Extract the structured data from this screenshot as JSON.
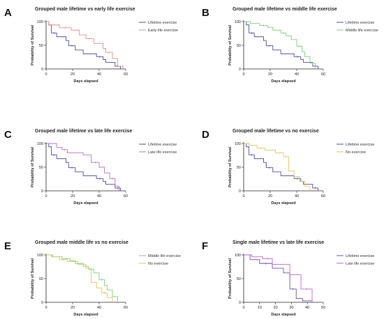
{
  "chart_data": [
    {
      "panel": "A",
      "type": "line",
      "title": "Grouped male lifetime vs early life exercise",
      "xlabel": "Days elapsed",
      "ylabel": "Probability of Survival",
      "xlim": [
        0,
        60
      ],
      "ylim": [
        0,
        100
      ],
      "xticks": [
        0,
        20,
        40,
        60
      ],
      "yticks": [
        0,
        50,
        100
      ],
      "legend_position": "right",
      "series": [
        {
          "name": "Lifetime exercise",
          "color": "#4a4aa6",
          "x": [
            0,
            2,
            4,
            8,
            15,
            17,
            22,
            28,
            38,
            43,
            45,
            52,
            56
          ],
          "y": [
            100,
            93,
            76,
            68,
            60,
            49,
            40,
            32,
            26,
            20,
            14,
            6,
            0
          ]
        },
        {
          "name": "Early life exercise",
          "color": "#e58e80",
          "x": [
            0,
            2,
            10,
            19,
            25,
            30,
            36,
            43,
            45,
            50,
            54,
            58
          ],
          "y": [
            100,
            93,
            87,
            82,
            72,
            64,
            54,
            43,
            35,
            22,
            6,
            0
          ]
        }
      ]
    },
    {
      "panel": "B",
      "type": "line",
      "title": "Grouped male lifetime vs middle life exercise",
      "xlabel": "Days elapsed",
      "ylabel": "Probability of Survival",
      "xlim": [
        0,
        60
      ],
      "ylim": [
        0,
        100
      ],
      "xticks": [
        0,
        20,
        40,
        60
      ],
      "yticks": [
        0,
        50,
        100
      ],
      "legend_position": "right",
      "series": [
        {
          "name": "Lifetime exercise",
          "color": "#4a4aa6",
          "x": [
            0,
            2,
            4,
            8,
            15,
            17,
            22,
            28,
            38,
            43,
            45,
            52,
            56
          ],
          "y": [
            100,
            93,
            76,
            68,
            60,
            49,
            40,
            32,
            26,
            20,
            14,
            6,
            0
          ]
        },
        {
          "name": "Middle life exercise",
          "color": "#7bcf7b",
          "x": [
            0,
            5,
            12,
            18,
            22,
            28,
            32,
            36,
            40,
            44,
            46,
            50,
            54
          ],
          "y": [
            100,
            96,
            92,
            88,
            82,
            76,
            70,
            62,
            48,
            36,
            26,
            12,
            0
          ]
        }
      ]
    },
    {
      "panel": "C",
      "type": "line",
      "title": "Grouped male lifetime vs late life exercise",
      "xlabel": "Days elapsed",
      "ylabel": "Probability of Survival",
      "xlim": [
        0,
        60
      ],
      "ylim": [
        0,
        100
      ],
      "xticks": [
        0,
        20,
        40,
        60
      ],
      "yticks": [
        0,
        50,
        100
      ],
      "legend_position": "right",
      "series": [
        {
          "name": "Lifetime exercise",
          "color": "#4a4aa6",
          "x": [
            0,
            2,
            4,
            8,
            15,
            17,
            22,
            28,
            38,
            43,
            45,
            52,
            56
          ],
          "y": [
            100,
            93,
            76,
            68,
            60,
            49,
            40,
            32,
            26,
            20,
            14,
            6,
            0
          ]
        },
        {
          "name": "Late life exercise",
          "color": "#b86fc9",
          "x": [
            0,
            8,
            12,
            16,
            28,
            34,
            40,
            44,
            48,
            52,
            55
          ],
          "y": [
            100,
            92,
            87,
            80,
            76,
            60,
            50,
            38,
            26,
            10,
            0
          ]
        }
      ]
    },
    {
      "panel": "D",
      "type": "line",
      "title": "Grouped male lifetime vs no exercise",
      "xlabel": "Days elapsed",
      "ylabel": "Probability of Survival",
      "xlim": [
        0,
        60
      ],
      "ylim": [
        0,
        100
      ],
      "xticks": [
        0,
        20,
        40,
        60
      ],
      "yticks": [
        0,
        50,
        100
      ],
      "legend_position": "right",
      "series": [
        {
          "name": "Lifetime exercise",
          "color": "#4a4aa6",
          "x": [
            0,
            2,
            4,
            8,
            15,
            17,
            22,
            28,
            38,
            43,
            45,
            52,
            56
          ],
          "y": [
            100,
            93,
            76,
            68,
            60,
            49,
            40,
            32,
            26,
            20,
            14,
            6,
            0
          ]
        },
        {
          "name": "No exercise",
          "color": "#e0c25a",
          "x": [
            0,
            4,
            10,
            16,
            24,
            30,
            34,
            38,
            42,
            46,
            50
          ],
          "y": [
            100,
            96,
            90,
            86,
            80,
            72,
            42,
            30,
            20,
            10,
            0
          ]
        }
      ]
    },
    {
      "panel": "E",
      "type": "line",
      "title": "Grouped male middle life vs no exercise",
      "xlabel": "Days elapsed",
      "ylabel": "Probability of Survival",
      "xlim": [
        0,
        60
      ],
      "ylim": [
        0,
        100
      ],
      "xticks": [
        0,
        20,
        40,
        60
      ],
      "yticks": [
        0,
        50,
        100
      ],
      "legend_position": "right",
      "series": [
        {
          "name": "Middle life exercise",
          "color": "#7bcf7b",
          "x": [
            0,
            5,
            12,
            18,
            22,
            28,
            32,
            36,
            40,
            44,
            46,
            50,
            54
          ],
          "y": [
            100,
            96,
            92,
            88,
            82,
            76,
            70,
            62,
            48,
            36,
            26,
            12,
            0
          ]
        },
        {
          "name": "No exercise",
          "color": "#e0c25a",
          "x": [
            0,
            4,
            10,
            16,
            24,
            30,
            34,
            38,
            42,
            46,
            50
          ],
          "y": [
            100,
            96,
            90,
            86,
            80,
            72,
            42,
            30,
            20,
            10,
            0
          ]
        }
      ]
    },
    {
      "panel": "F",
      "type": "line",
      "title": "Single male lifetime vs late life exercise",
      "xlabel": "Days elapsed",
      "ylabel": "Probability of Survival",
      "xlim": [
        0,
        50
      ],
      "ylim": [
        0,
        100
      ],
      "xticks": [
        0,
        10,
        20,
        30,
        40,
        50
      ],
      "yticks": [
        0,
        50,
        100
      ],
      "legend_position": "right",
      "series": [
        {
          "name": "Lifetime exercise",
          "color": "#6a4fa8",
          "x": [
            0,
            4,
            10,
            18,
            25,
            29,
            33,
            37,
            43
          ],
          "y": [
            100,
            90,
            82,
            72,
            62,
            28,
            8,
            3,
            0
          ]
        },
        {
          "name": "Late life exercise",
          "color": "#c25fd1",
          "x": [
            0,
            5,
            12,
            18,
            29,
            36,
            43
          ],
          "y": [
            100,
            96,
            92,
            80,
            58,
            28,
            0
          ]
        }
      ]
    }
  ]
}
